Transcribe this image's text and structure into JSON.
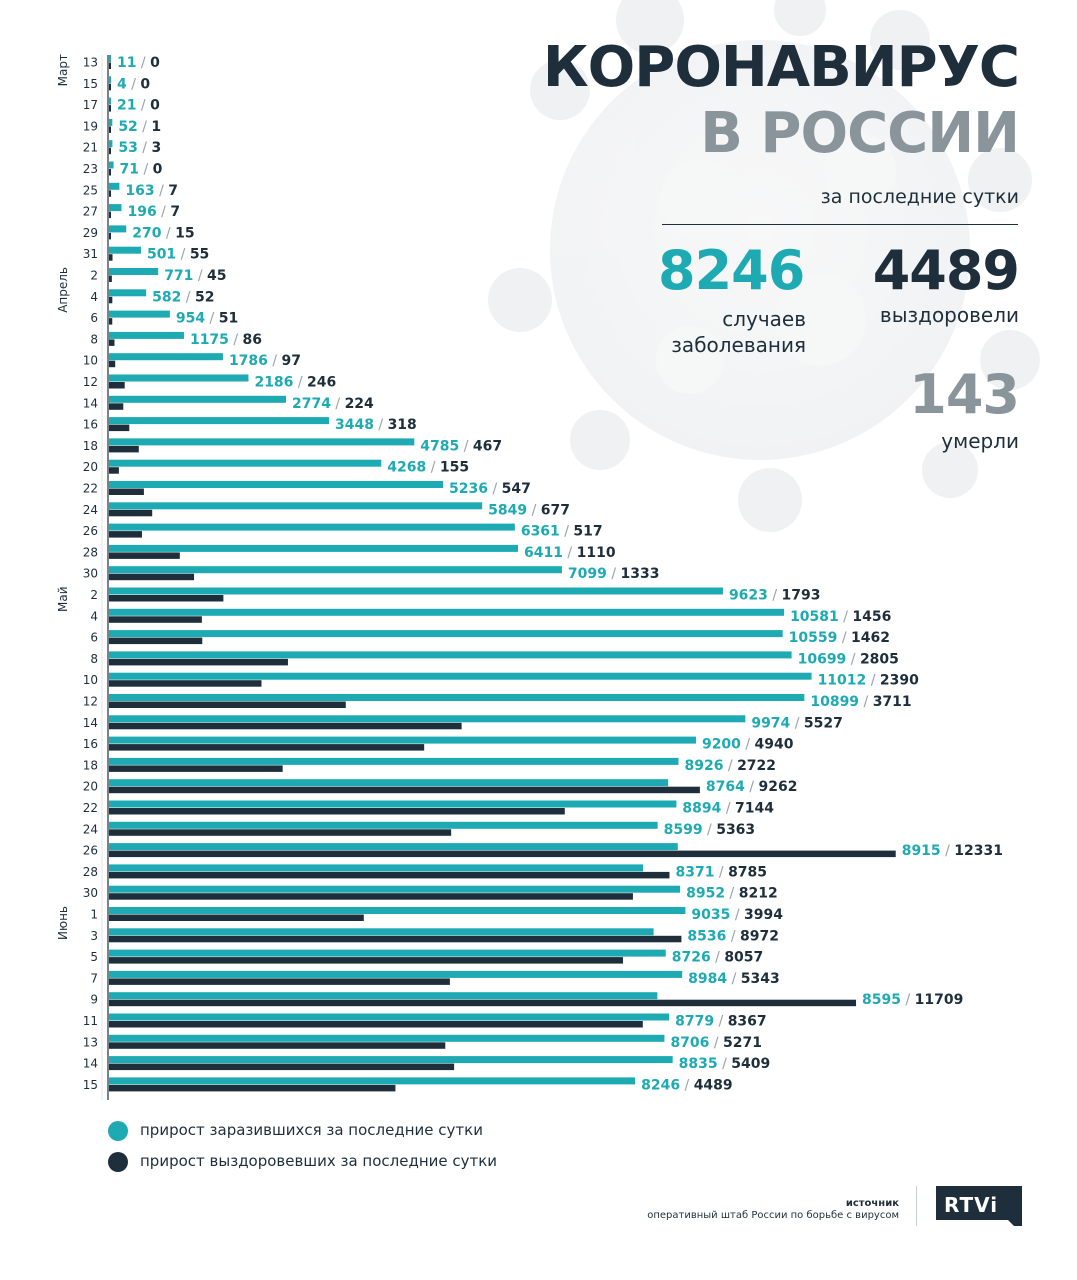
{
  "header": {
    "title_line1": "КОРОНАВИРУС",
    "title_line2": "В РОССИИ",
    "subtitle": "за последние сутки"
  },
  "stats": {
    "cases": "8246",
    "cases_label_line1": "случаев",
    "cases_label_line2": "заболевания",
    "recovered": "4489",
    "recovered_label": "выздоровели",
    "deaths": "143",
    "deaths_label": "умерли"
  },
  "legend": {
    "infected": "прирост заразившихся за последние сутки",
    "recovered": "прирост выздоровевших за последние сутки"
  },
  "source": {
    "label": "источник",
    "text": "оперативный штаб России по борьбе с вирусом"
  },
  "logo": "RTVi",
  "colors": {
    "infected": "#1eaab2",
    "recovered": "#1e2f3b",
    "title_dark": "#1e2f3b",
    "title_gray": "#8a949b"
  },
  "chart_data": {
    "type": "bar",
    "orientation": "horizontal",
    "month_labels": [
      {
        "label": "Март",
        "start": 0
      },
      {
        "label": "Апрель",
        "start": 10
      },
      {
        "label": "Май",
        "start": 25
      },
      {
        "label": "Июнь",
        "start": 40
      }
    ],
    "categories": [
      "13",
      "15",
      "17",
      "19",
      "21",
      "23",
      "25",
      "27",
      "29",
      "31",
      "2",
      "4",
      "6",
      "8",
      "10",
      "12",
      "14",
      "16",
      "18",
      "20",
      "22",
      "24",
      "26",
      "28",
      "30",
      "2",
      "4",
      "6",
      "8",
      "10",
      "12",
      "14",
      "16",
      "18",
      "20",
      "22",
      "24",
      "26",
      "28",
      "30",
      "1",
      "3",
      "5",
      "7",
      "9",
      "11",
      "13",
      "14",
      "15"
    ],
    "series": [
      {
        "name": "прирост заразившихся за последние сутки",
        "values": [
          11,
          4,
          21,
          52,
          53,
          71,
          163,
          196,
          270,
          501,
          771,
          582,
          954,
          1175,
          1786,
          2186,
          2774,
          3448,
          4785,
          4268,
          5236,
          5849,
          6361,
          6411,
          7099,
          9623,
          10581,
          10559,
          10699,
          11012,
          10899,
          9974,
          9200,
          8926,
          8764,
          8894,
          8599,
          8915,
          8371,
          8952,
          9035,
          8536,
          8726,
          8984,
          8595,
          8779,
          8706,
          8835,
          8246
        ]
      },
      {
        "name": "прирост выздоровевших за последние сутки",
        "values": [
          0,
          0,
          0,
          1,
          3,
          0,
          7,
          7,
          15,
          55,
          45,
          52,
          51,
          86,
          97,
          246,
          224,
          318,
          467,
          155,
          547,
          677,
          517,
          1110,
          1333,
          1793,
          1456,
          1462,
          2805,
          2390,
          3711,
          5527,
          4940,
          2722,
          9262,
          7144,
          5363,
          12331,
          8785,
          8212,
          3994,
          8972,
          8057,
          5343,
          11709,
          8367,
          5271,
          5409,
          4489
        ]
      }
    ]
  }
}
